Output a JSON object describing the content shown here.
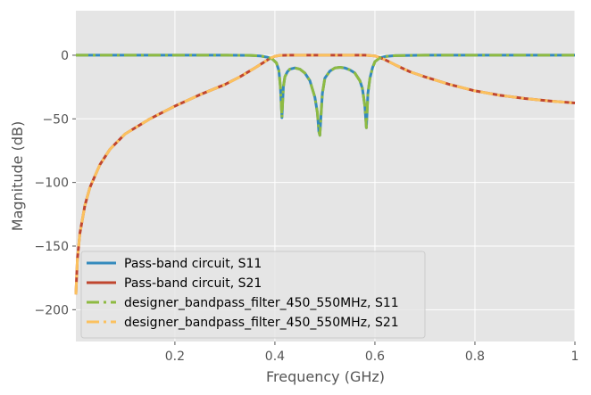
{
  "chart_data": {
    "type": "line",
    "title": "",
    "xlabel": "Frequency (GHz)",
    "ylabel": "Magnitude (dB)",
    "xlim": [
      0.002,
      1.0
    ],
    "ylim": [
      -225,
      35
    ],
    "grid": true,
    "legend_position": "lower-left",
    "x_ticks": [
      {
        "value": 0.2,
        "label": "0.2"
      },
      {
        "value": 0.4,
        "label": "0.4"
      },
      {
        "value": 0.6,
        "label": "0.6"
      },
      {
        "value": 0.8,
        "label": "0.8"
      },
      {
        "value": 1.0,
        "label": "1"
      }
    ],
    "y_ticks": [
      {
        "value": 0,
        "label": "0"
      },
      {
        "value": -50,
        "label": "−50"
      },
      {
        "value": -100,
        "label": "−100"
      },
      {
        "value": -150,
        "label": "−150"
      },
      {
        "value": -200,
        "label": "−200"
      }
    ],
    "series": [
      {
        "name": "Pass-band circuit, S11",
        "color": "#348ABD",
        "style": "solid",
        "x": [
          0.002,
          0.05,
          0.1,
          0.2,
          0.3,
          0.35,
          0.37,
          0.385,
          0.395,
          0.403,
          0.408,
          0.411,
          0.414,
          0.417,
          0.42,
          0.425,
          0.43,
          0.44,
          0.45,
          0.46,
          0.47,
          0.48,
          0.485,
          0.488,
          0.49,
          0.492,
          0.495,
          0.5,
          0.51,
          0.52,
          0.53,
          0.54,
          0.55,
          0.56,
          0.57,
          0.575,
          0.58,
          0.583,
          0.586,
          0.59,
          0.595,
          0.6,
          0.61,
          0.62,
          0.64,
          0.7,
          0.8,
          0.9,
          1.0
        ],
        "y": [
          0,
          0,
          0,
          0,
          0,
          -0.1,
          -0.5,
          -1.5,
          -3,
          -6,
          -12,
          -25,
          -49,
          -25,
          -17,
          -13,
          -11,
          -10,
          -11,
          -14,
          -20,
          -33,
          -45,
          -60,
          -63,
          -48,
          -30,
          -18,
          -12.5,
          -10,
          -9.5,
          -10,
          -11.5,
          -14,
          -20,
          -26,
          -40,
          -57,
          -30,
          -18,
          -10,
          -5,
          -2,
          -1,
          -0.3,
          0,
          0,
          0,
          0
        ]
      },
      {
        "name": "Pass-band circuit, S21",
        "color": "#C0462F",
        "style": "solid",
        "x": [
          0.002,
          0.005,
          0.01,
          0.02,
          0.03,
          0.05,
          0.07,
          0.1,
          0.15,
          0.2,
          0.25,
          0.3,
          0.33,
          0.36,
          0.38,
          0.39,
          0.4,
          0.41,
          0.43,
          0.5,
          0.58,
          0.6,
          0.62,
          0.64,
          0.67,
          0.7,
          0.75,
          0.8,
          0.85,
          0.9,
          0.95,
          1.0
        ],
        "y": [
          -188,
          -160,
          -140,
          -118,
          -104,
          -86,
          -74,
          -62,
          -50,
          -40,
          -31,
          -23,
          -17,
          -10,
          -5,
          -2.5,
          -0.8,
          -0.1,
          0,
          0,
          0,
          -0.5,
          -3.5,
          -7.5,
          -13,
          -17,
          -23,
          -28,
          -31.5,
          -34,
          -36,
          -37.5
        ]
      },
      {
        "name": "designer_bandpass_filter_450_550MHz, S11",
        "color": "#8EBA42",
        "style": "dashdot",
        "x": [
          0.002,
          0.05,
          0.1,
          0.2,
          0.3,
          0.35,
          0.37,
          0.385,
          0.395,
          0.403,
          0.408,
          0.411,
          0.414,
          0.417,
          0.42,
          0.425,
          0.43,
          0.44,
          0.45,
          0.46,
          0.47,
          0.48,
          0.485,
          0.488,
          0.49,
          0.492,
          0.495,
          0.5,
          0.51,
          0.52,
          0.53,
          0.54,
          0.55,
          0.56,
          0.57,
          0.575,
          0.58,
          0.583,
          0.586,
          0.59,
          0.595,
          0.6,
          0.61,
          0.62,
          0.64,
          0.7,
          0.8,
          0.9,
          1.0
        ],
        "y": [
          0,
          0,
          0,
          0,
          0,
          -0.1,
          -0.5,
          -1.5,
          -3,
          -6,
          -12,
          -25,
          -49,
          -25,
          -17,
          -13,
          -11,
          -10,
          -11,
          -14,
          -20,
          -33,
          -45,
          -60,
          -63,
          -48,
          -30,
          -18,
          -12.5,
          -10,
          -9.5,
          -10,
          -11.5,
          -14,
          -20,
          -26,
          -40,
          -57,
          -30,
          -18,
          -10,
          -5,
          -2,
          -1,
          -0.3,
          0,
          0,
          0,
          0
        ]
      },
      {
        "name": "designer_bandpass_filter_450_550MHz, S21",
        "color": "#FBC15E",
        "style": "dashdot",
        "x": [
          0.002,
          0.005,
          0.01,
          0.02,
          0.03,
          0.05,
          0.07,
          0.1,
          0.15,
          0.2,
          0.25,
          0.3,
          0.33,
          0.36,
          0.38,
          0.39,
          0.4,
          0.41,
          0.43,
          0.5,
          0.58,
          0.6,
          0.62,
          0.64,
          0.67,
          0.7,
          0.75,
          0.8,
          0.85,
          0.9,
          0.95,
          1.0
        ],
        "y": [
          -188,
          -160,
          -140,
          -118,
          -104,
          -86,
          -74,
          -62,
          -50,
          -40,
          -31,
          -23,
          -17,
          -10,
          -5,
          -2.5,
          -0.8,
          -0.1,
          0,
          0,
          0,
          -0.5,
          -3.5,
          -7.5,
          -13,
          -17,
          -23,
          -28,
          -31.5,
          -34,
          -36,
          -37.5
        ]
      }
    ]
  }
}
